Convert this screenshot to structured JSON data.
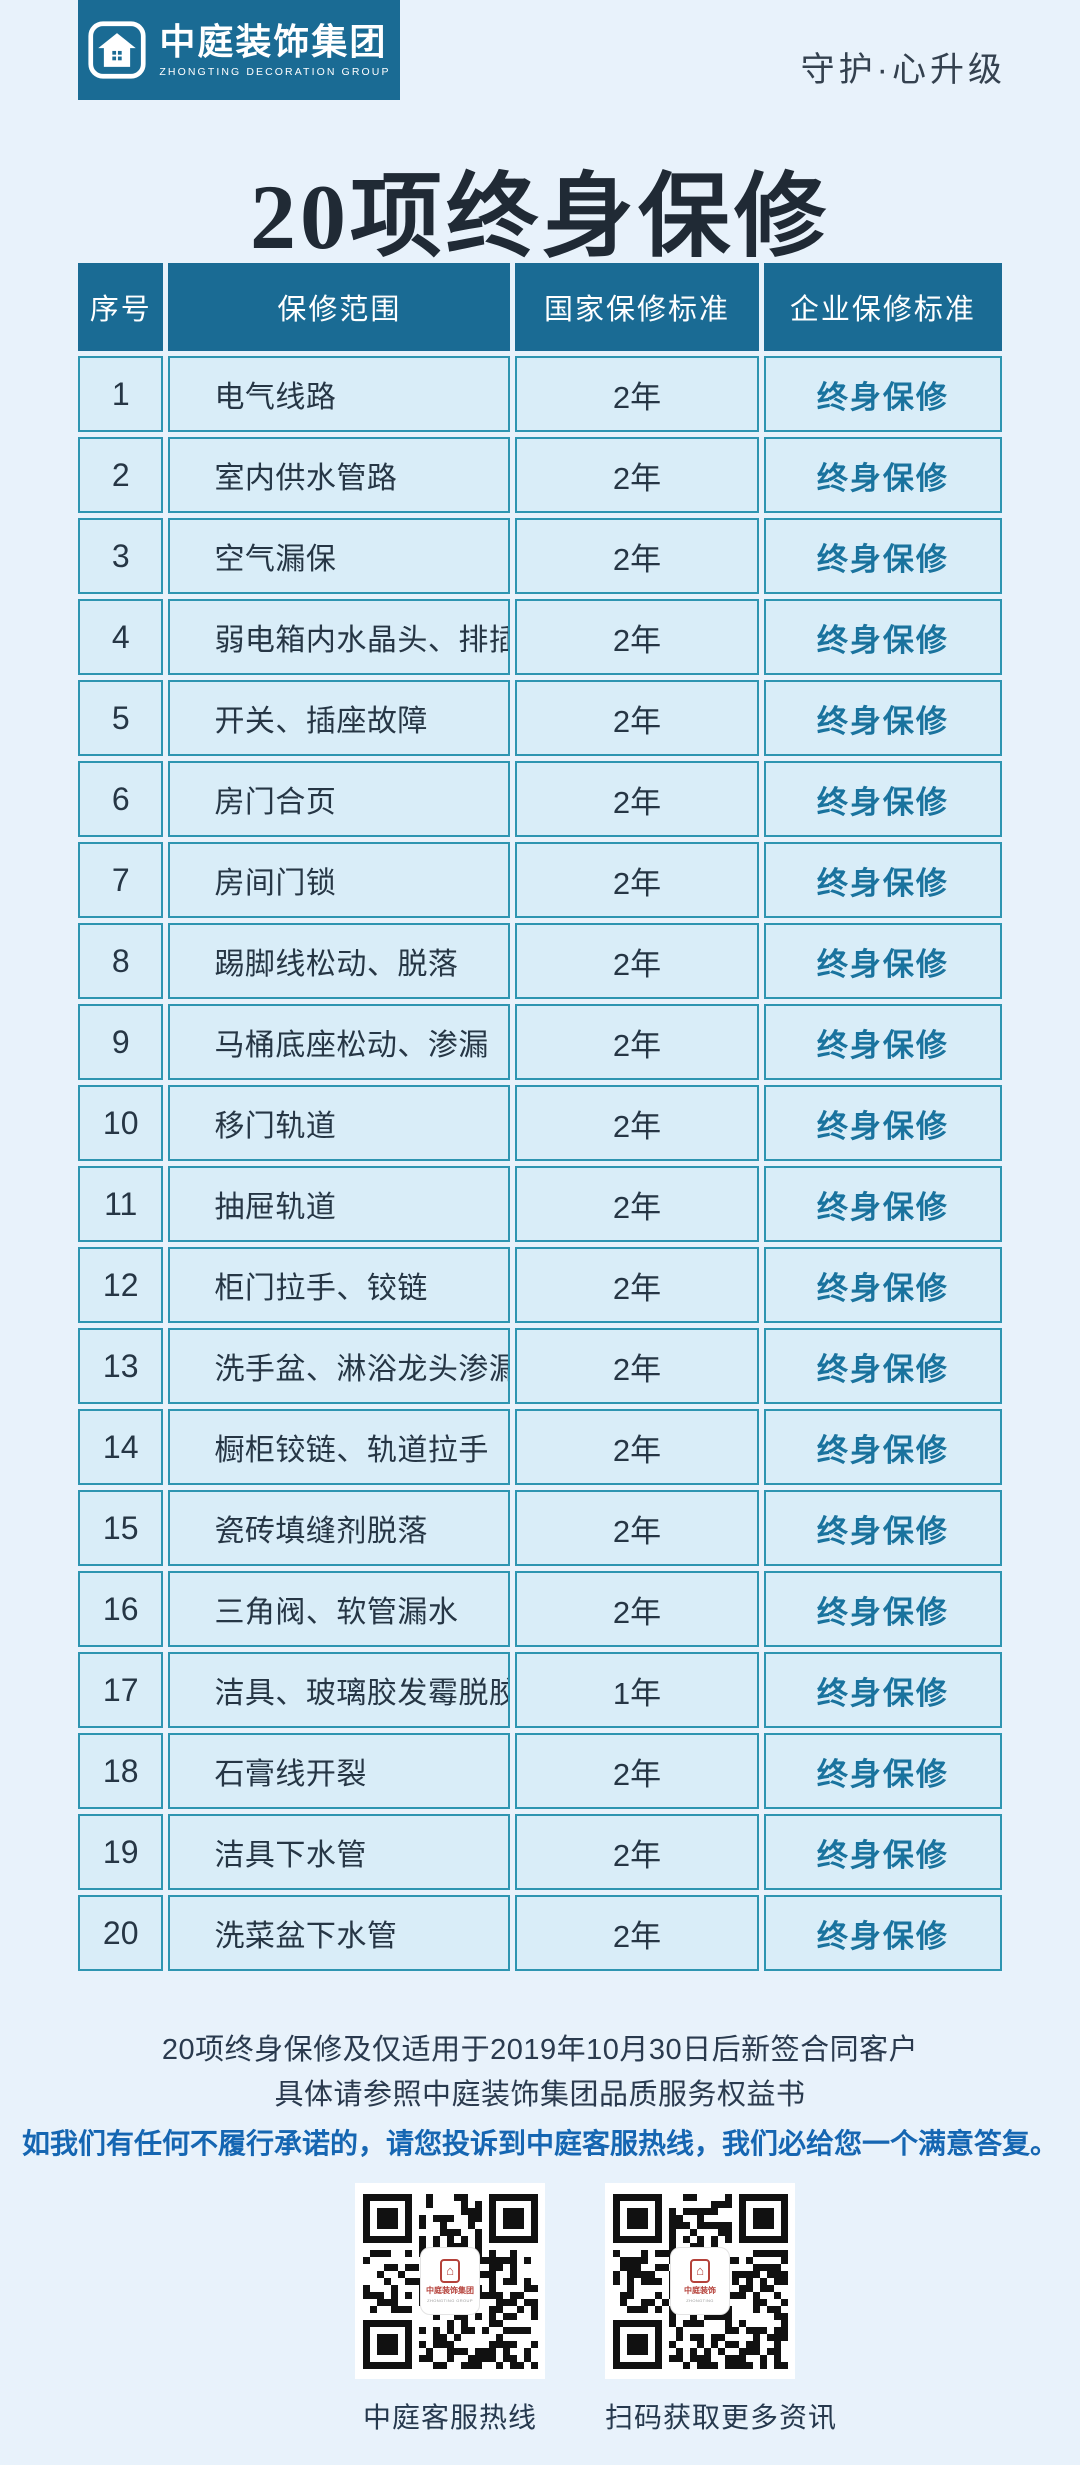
{
  "header": {
    "logo_cn": "中庭装饰集团",
    "logo_en": "ZHONGTING DECORATION GROUP",
    "slogan": "守护·心升级"
  },
  "title": "20项终身保修",
  "table": {
    "columns": [
      "序号",
      "保修范围",
      "国家保修标准",
      "企业保修标准"
    ],
    "rows": [
      [
        "1",
        "电气线路",
        "2年",
        "终身保修"
      ],
      [
        "2",
        "室内供水管路",
        "2年",
        "终身保修"
      ],
      [
        "3",
        "空气漏保",
        "2年",
        "终身保修"
      ],
      [
        "4",
        "弱电箱内水晶头、排插",
        "2年",
        "终身保修"
      ],
      [
        "5",
        "开关、插座故障",
        "2年",
        "终身保修"
      ],
      [
        "6",
        "房门合页",
        "2年",
        "终身保修"
      ],
      [
        "7",
        "房间门锁",
        "2年",
        "终身保修"
      ],
      [
        "8",
        "踢脚线松动、脱落",
        "2年",
        "终身保修"
      ],
      [
        "9",
        "马桶底座松动、渗漏",
        "2年",
        "终身保修"
      ],
      [
        "10",
        "移门轨道",
        "2年",
        "终身保修"
      ],
      [
        "11",
        "抽屉轨道",
        "2年",
        "终身保修"
      ],
      [
        "12",
        "柜门拉手、铰链",
        "2年",
        "终身保修"
      ],
      [
        "13",
        "洗手盆、淋浴龙头渗漏",
        "2年",
        "终身保修"
      ],
      [
        "14",
        "橱柜铰链、轨道拉手",
        "2年",
        "终身保修"
      ],
      [
        "15",
        "瓷砖填缝剂脱落",
        "2年",
        "终身保修"
      ],
      [
        "16",
        "三角阀、软管漏水",
        "2年",
        "终身保修"
      ],
      [
        "17",
        "洁具、玻璃胶发霉脱胶",
        "1年",
        "终身保修"
      ],
      [
        "18",
        "石膏线开裂",
        "2年",
        "终身保修"
      ],
      [
        "19",
        "洁具下水管",
        "2年",
        "终身保修"
      ],
      [
        "20",
        "洗菜盆下水管",
        "2年",
        "终身保修"
      ]
    ]
  },
  "notes": {
    "line1": "20项终身保修及仅适用于2019年10月30日后新签合同客户",
    "line2": "具体请参照中庭装饰集团品质服务权益书"
  },
  "promise": "如我们有任何不履行承诺的，请您投诉到中庭客服热线，我们必给您一个满意答复。",
  "qr_codes": [
    {
      "label": "中庭客服热线",
      "chip_text": "中庭装饰集团",
      "chip_sub": "ZHONGTING GROUP"
    },
    {
      "label": "扫码获取更多资讯",
      "chip_text": "中庭装饰",
      "chip_sub": "ZHONGTING"
    }
  ],
  "colors": {
    "brand_teal": "#1a6b94",
    "cell_bg": "#d9edf8",
    "cell_border": "#2e95b1",
    "lifetime_text": "#1a739e",
    "promise_blue": "#1566b2",
    "page_bg": "#e8f2fb",
    "emblem_red": "#b5413a"
  }
}
